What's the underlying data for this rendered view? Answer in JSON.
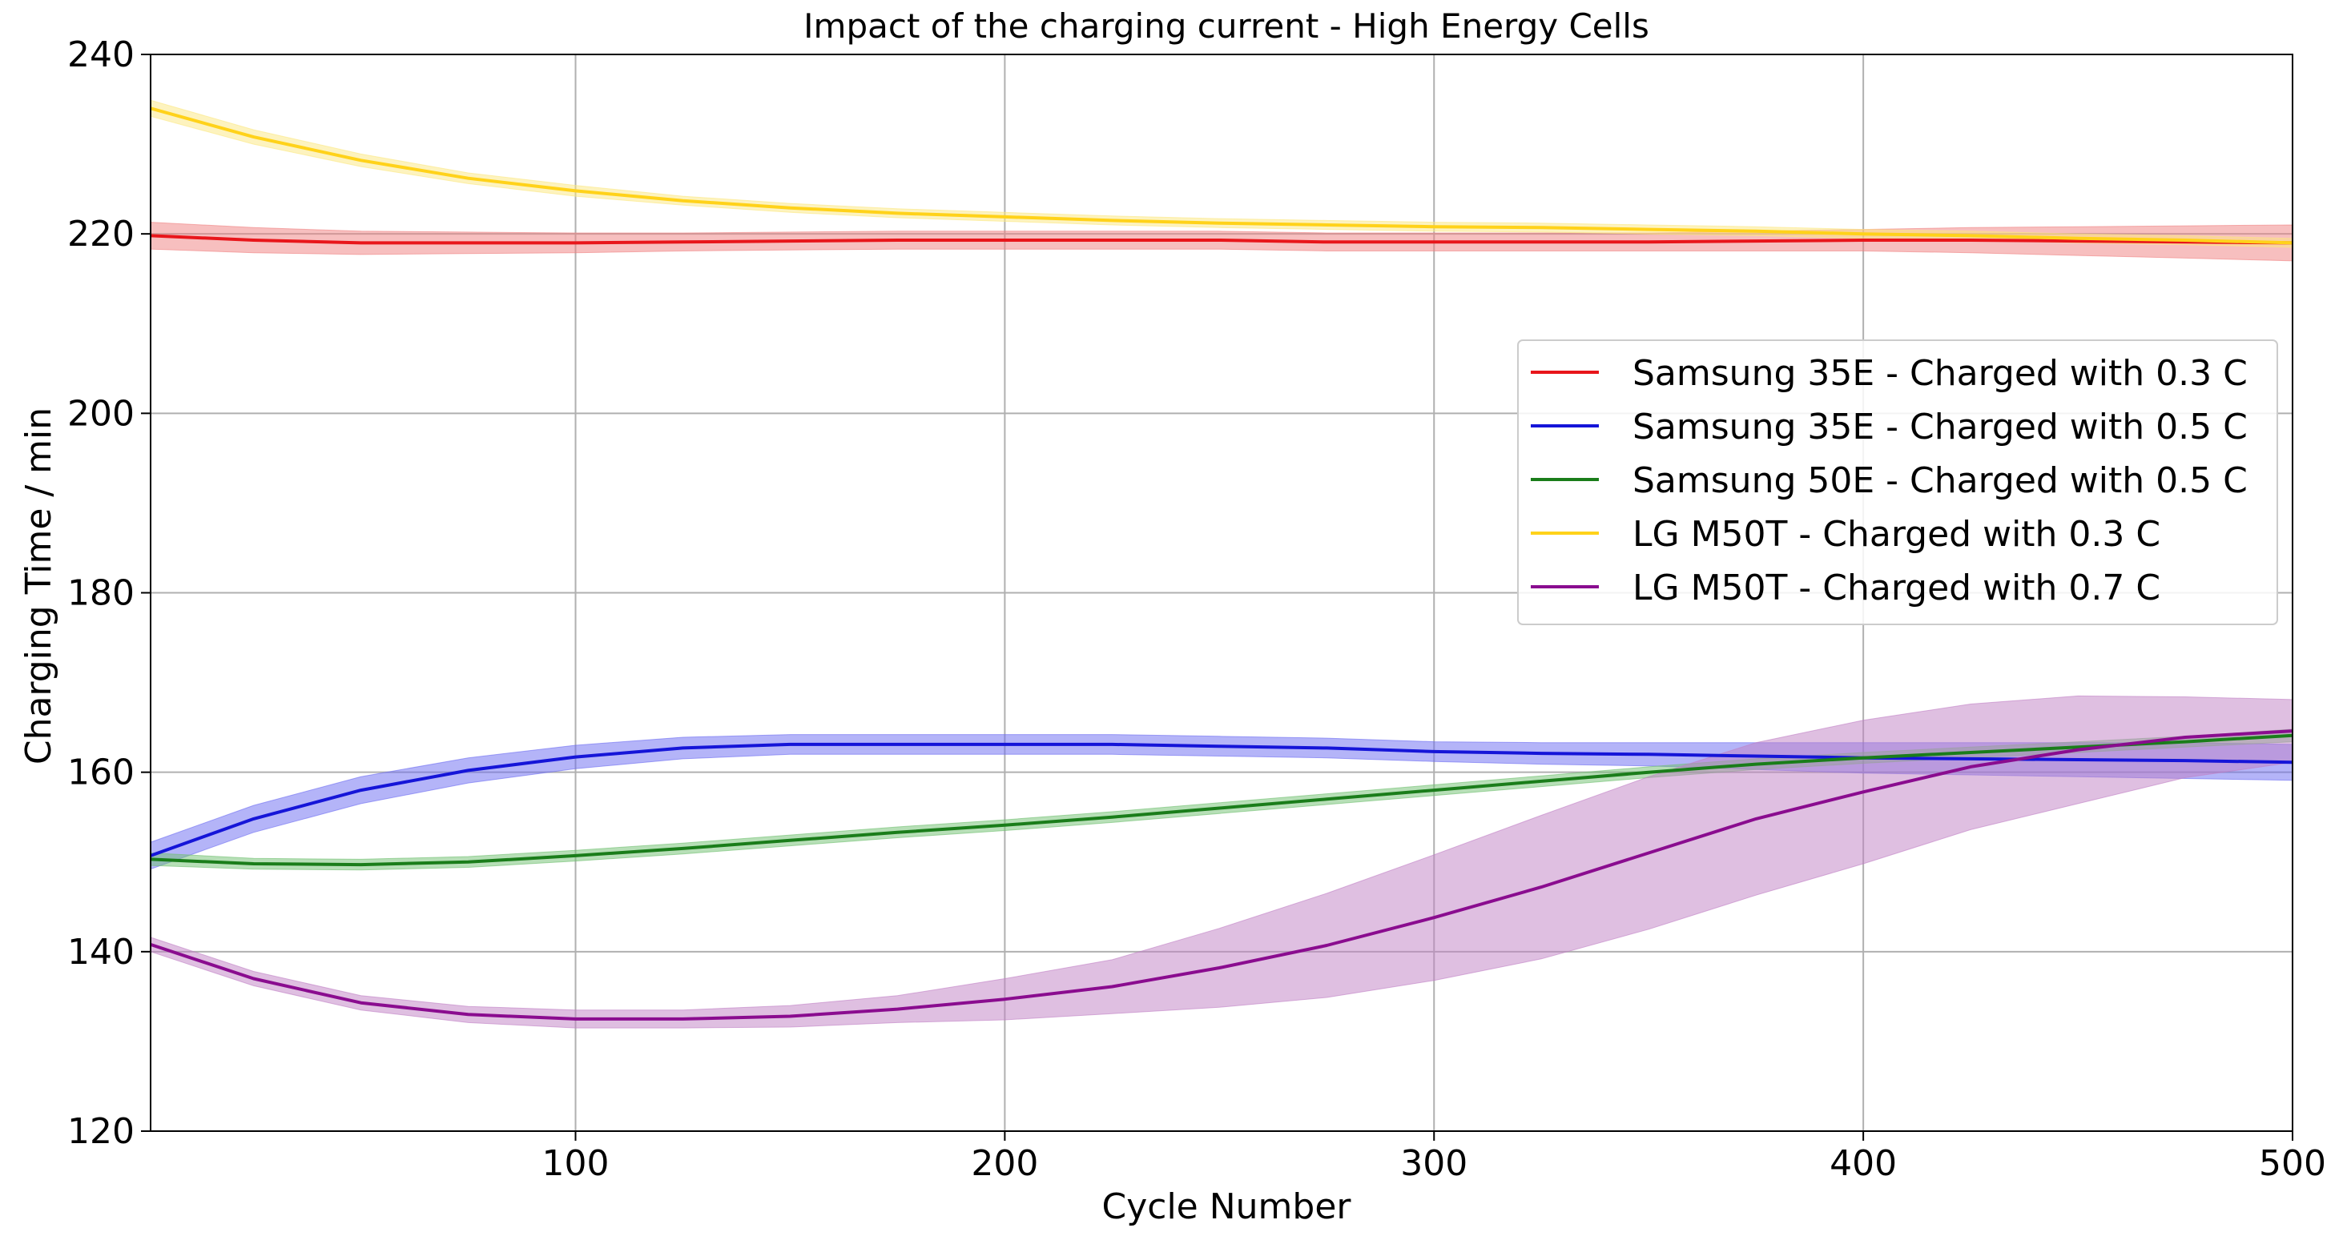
{
  "chart_data": {
    "type": "line",
    "title": "Impact of the charging current - High Energy Cells",
    "xlabel": "Cycle Number",
    "ylabel": "Charging Time / min",
    "xlim": [
      1,
      500
    ],
    "ylim": [
      120,
      240
    ],
    "xticks": [
      100,
      200,
      300,
      400,
      500
    ],
    "yticks": [
      120,
      140,
      160,
      180,
      200,
      220,
      240
    ],
    "grid": true,
    "legend_position": "center-right",
    "series": [
      {
        "name": "Samsung 35E - Charged with 0.3 C",
        "color": "#e8161b",
        "band_color": "#f08080",
        "x": [
          1,
          25,
          50,
          75,
          100,
          125,
          150,
          175,
          200,
          225,
          250,
          275,
          300,
          325,
          350,
          375,
          400,
          425,
          450,
          475,
          500
        ],
        "y": [
          219.8,
          219.3,
          219.0,
          219.0,
          219.0,
          219.1,
          219.2,
          219.3,
          219.3,
          219.3,
          219.3,
          219.1,
          219.1,
          219.1,
          219.1,
          219.2,
          219.3,
          219.3,
          219.2,
          219.1,
          219.0
        ],
        "band": [
          1.5,
          1.4,
          1.3,
          1.2,
          1.1,
          1.0,
          1.0,
          1.0,
          1.0,
          1.0,
          1.0,
          1.0,
          1.0,
          1.0,
          1.0,
          1.1,
          1.2,
          1.4,
          1.6,
          1.8,
          2.0
        ]
      },
      {
        "name": "Samsung 35E - Charged with 0.5 C",
        "color": "#1515d8",
        "band_color": "#6a6af2",
        "x": [
          1,
          25,
          50,
          75,
          100,
          125,
          150,
          175,
          200,
          225,
          250,
          275,
          300,
          325,
          350,
          375,
          400,
          425,
          450,
          475,
          500
        ],
        "y": [
          150.7,
          154.8,
          158.0,
          160.2,
          161.7,
          162.7,
          163.1,
          163.1,
          163.1,
          163.1,
          162.9,
          162.7,
          162.3,
          162.1,
          162.0,
          161.8,
          161.6,
          161.5,
          161.4,
          161.3,
          161.1
        ],
        "band": [
          1.5,
          1.5,
          1.5,
          1.4,
          1.3,
          1.2,
          1.1,
          1.1,
          1.1,
          1.1,
          1.1,
          1.1,
          1.1,
          1.2,
          1.3,
          1.5,
          1.7,
          1.8,
          1.9,
          2.0,
          2.0
        ]
      },
      {
        "name": "Samsung 50E - Charged with 0.5 C",
        "color": "#1a7d1a",
        "band_color": "#70c070",
        "x": [
          1,
          25,
          50,
          75,
          100,
          125,
          150,
          175,
          200,
          225,
          250,
          275,
          300,
          325,
          350,
          375,
          400,
          425,
          450,
          475,
          500
        ],
        "y": [
          150.3,
          149.8,
          149.7,
          150.0,
          150.7,
          151.5,
          152.4,
          153.3,
          154.1,
          155.0,
          156.0,
          157.0,
          158.0,
          159.0,
          160.0,
          160.9,
          161.6,
          162.2,
          162.8,
          163.4,
          164.1
        ],
        "band": [
          0.7,
          0.6,
          0.6,
          0.6,
          0.6,
          0.6,
          0.6,
          0.6,
          0.6,
          0.6,
          0.6,
          0.6,
          0.6,
          0.6,
          0.6,
          0.6,
          0.6,
          0.6,
          0.6,
          0.6,
          0.7
        ]
      },
      {
        "name": "LG M50T - Charged with 0.3 C",
        "color": "#ffd21a",
        "band_color": "#fbe780",
        "x": [
          1,
          25,
          50,
          75,
          100,
          125,
          150,
          175,
          200,
          225,
          250,
          275,
          300,
          325,
          350,
          375,
          400,
          425,
          450,
          475,
          500
        ],
        "y": [
          234.0,
          230.8,
          228.2,
          226.2,
          224.8,
          223.7,
          222.9,
          222.3,
          221.9,
          221.5,
          221.2,
          221.0,
          220.8,
          220.7,
          220.5,
          220.3,
          220.0,
          219.8,
          219.5,
          219.3,
          219.0
        ],
        "band": [
          0.9,
          0.8,
          0.7,
          0.6,
          0.6,
          0.5,
          0.5,
          0.5,
          0.5,
          0.5,
          0.5,
          0.5,
          0.5,
          0.5,
          0.5,
          0.5,
          0.5,
          0.5,
          0.5,
          0.5,
          0.5
        ]
      },
      {
        "name": "LG M50T - Charged with 0.7 C",
        "color": "#8a0c8f",
        "band_color": "#c07fc4",
        "x": [
          1,
          25,
          50,
          75,
          100,
          125,
          150,
          175,
          200,
          225,
          250,
          275,
          300,
          325,
          350,
          375,
          400,
          425,
          450,
          475,
          500
        ],
        "y": [
          140.8,
          137.0,
          134.3,
          133.0,
          132.5,
          132.5,
          132.8,
          133.6,
          134.7,
          136.1,
          138.2,
          140.7,
          143.8,
          147.2,
          151.0,
          154.8,
          157.8,
          160.6,
          162.5,
          163.9,
          164.6
        ],
        "band": [
          0.8,
          0.8,
          0.8,
          0.9,
          1.0,
          1.0,
          1.2,
          1.5,
          2.3,
          3.0,
          4.4,
          5.8,
          7.0,
          8.0,
          8.5,
          8.5,
          8.0,
          7.0,
          6.0,
          4.5,
          3.5
        ]
      }
    ]
  }
}
